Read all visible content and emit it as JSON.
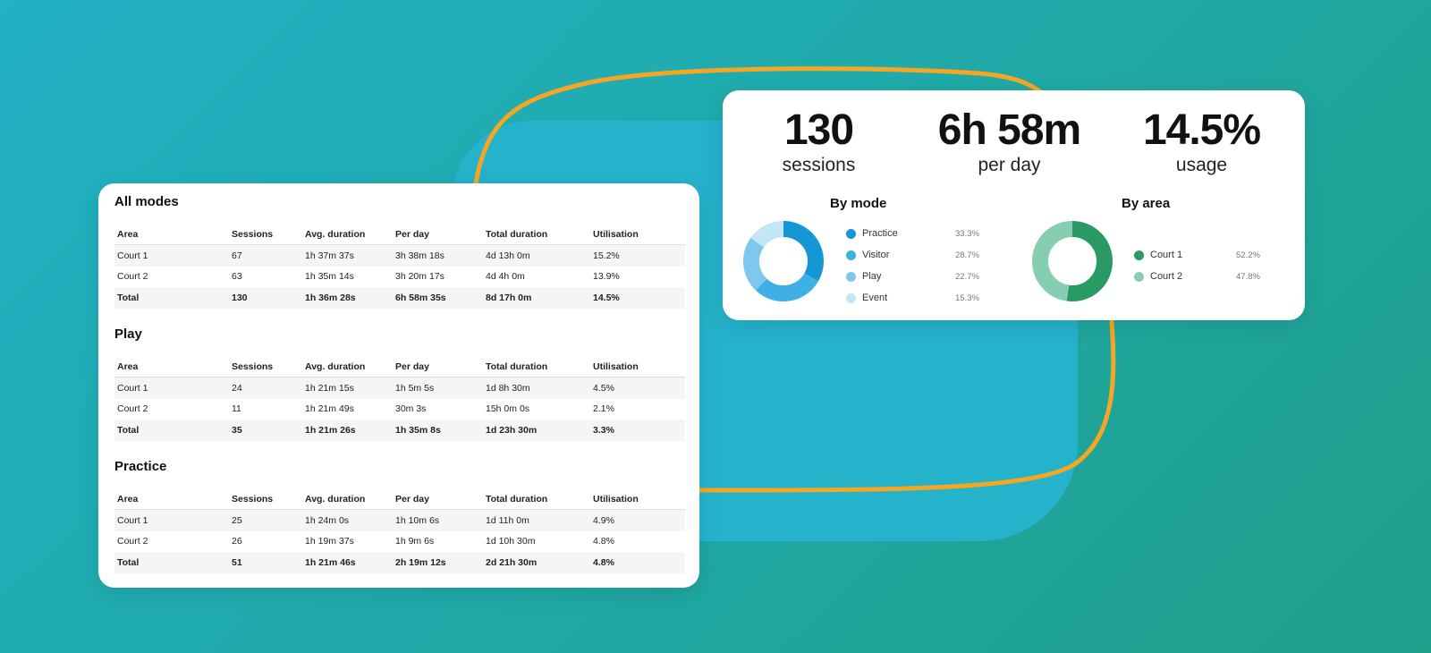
{
  "colors": {
    "mode": [
      "#1597d6",
      "#3fb0e3",
      "#7dc8ec",
      "#c3e6f7"
    ],
    "area": [
      "#2a9a65",
      "#86cdb1"
    ],
    "orange": "#f5a623"
  },
  "sections": [
    {
      "title": "All modes",
      "headers": [
        "Area",
        "Sessions",
        "Avg. duration",
        "Per day",
        "Total duration",
        "Utilisation"
      ],
      "rows": [
        [
          "Court 1",
          "67",
          "1h 37m 37s",
          "3h 38m 18s",
          "4d 13h 0m",
          "15.2%"
        ],
        [
          "Court 2",
          "63",
          "1h 35m 14s",
          "3h 20m 17s",
          "4d 4h 0m",
          "13.9%"
        ]
      ],
      "total": [
        "Total",
        "130",
        "1h 36m 28s",
        "6h 58m 35s",
        "8d 17h 0m",
        "14.5%"
      ]
    },
    {
      "title": "Play",
      "headers": [
        "Area",
        "Sessions",
        "Avg. duration",
        "Per day",
        "Total duration",
        "Utilisation"
      ],
      "rows": [
        [
          "Court 1",
          "24",
          "1h 21m 15s",
          "1h 5m 5s",
          "1d 8h 30m",
          "4.5%"
        ],
        [
          "Court 2",
          "11",
          "1h 21m 49s",
          "30m 3s",
          "15h 0m 0s",
          "2.1%"
        ]
      ],
      "total": [
        "Total",
        "35",
        "1h 21m 26s",
        "1h 35m 8s",
        "1d 23h 30m",
        "3.3%"
      ]
    },
    {
      "title": "Practice",
      "headers": [
        "Area",
        "Sessions",
        "Avg. duration",
        "Per day",
        "Total duration",
        "Utilisation"
      ],
      "rows": [
        [
          "Court 1",
          "25",
          "1h 24m 0s",
          "1h 10m 6s",
          "1d 11h 0m",
          "4.9%"
        ],
        [
          "Court 2",
          "26",
          "1h 19m 37s",
          "1h 9m 6s",
          "1d 10h 30m",
          "4.8%"
        ]
      ],
      "total": [
        "Total",
        "51",
        "1h 21m 46s",
        "2h 19m 12s",
        "2d 21h 30m",
        "4.8%"
      ]
    }
  ],
  "stats": [
    {
      "value": "130",
      "label": "sessions"
    },
    {
      "value": "6h 58m",
      "label": "per day"
    },
    {
      "value": "14.5%",
      "label": "usage"
    }
  ],
  "charts": {
    "by_mode": {
      "title": "By mode",
      "items": [
        {
          "label": "Practice",
          "pct": "33.3%",
          "value": 33.3
        },
        {
          "label": "Visitor",
          "pct": "28.7%",
          "value": 28.7
        },
        {
          "label": "Play",
          "pct": "22.7%",
          "value": 22.7
        },
        {
          "label": "Event",
          "pct": "15.3%",
          "value": 15.3
        }
      ]
    },
    "by_area": {
      "title": "By area",
      "items": [
        {
          "label": "Court 1",
          "pct": "52.2%",
          "value": 52.2
        },
        {
          "label": "Court 2",
          "pct": "47.8%",
          "value": 47.8
        }
      ]
    }
  }
}
